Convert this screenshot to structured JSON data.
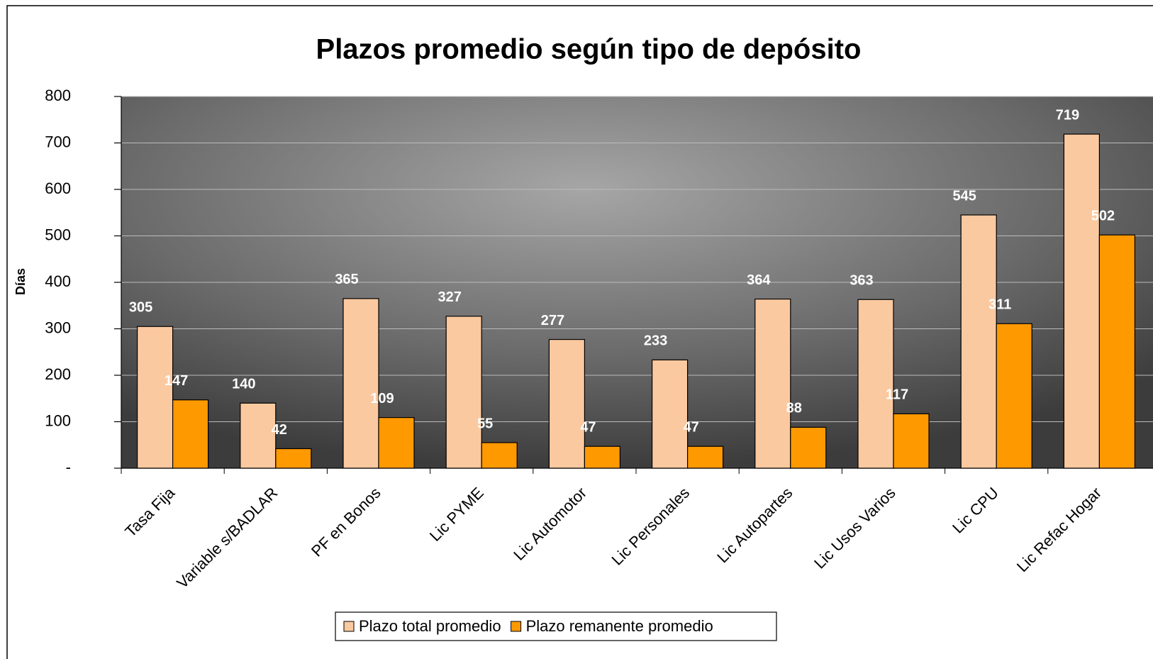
{
  "chart_data": {
    "type": "bar",
    "title": "Plazos promedio según tipo de depósito",
    "y_label": "Días",
    "categories": [
      "Tasa Fija",
      "Variable s/BADLAR",
      "PF en Bonos",
      "Lic PYME",
      "Lic Automotor",
      "Lic Personales",
      "Lic Autopartes",
      "Lic Usos Varios",
      "Lic CPU",
      "Lic Refac Hogar"
    ],
    "series": [
      {
        "name": "Plazo total promedio",
        "color": "#fbc9a0",
        "values": [
          305,
          140,
          365,
          327,
          277,
          233,
          364,
          363,
          545,
          719
        ]
      },
      {
        "name": "Plazo remanente promedio",
        "color": "#ff9900",
        "values": [
          147,
          42,
          109,
          55,
          47,
          47,
          88,
          117,
          311,
          502
        ]
      }
    ],
    "ylim": [
      0,
      800
    ],
    "yticks": [
      {
        "value": 0,
        "label": "-"
      },
      100,
      200,
      300,
      400,
      500,
      600,
      700,
      800
    ],
    "grid": true,
    "legend": "bottom"
  }
}
